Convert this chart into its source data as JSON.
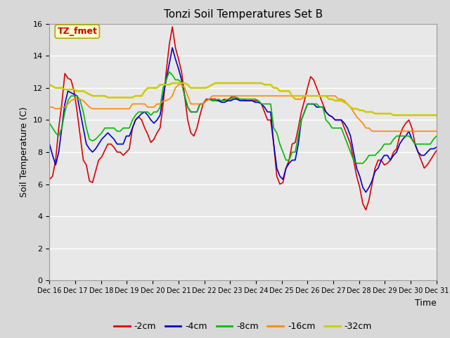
{
  "title": "Tonzi Soil Temperatures Set B",
  "xlabel": "Time",
  "ylabel": "Soil Temperature (C)",
  "annotation_text": "TZ_fmet",
  "annotation_bg": "#ffffcc",
  "annotation_border": "#aaaa00",
  "annotation_text_color": "#cc0000",
  "ylim": [
    0,
    16
  ],
  "yticks": [
    0,
    2,
    4,
    6,
    8,
    10,
    12,
    14,
    16
  ],
  "bg_color": "#d8d8d8",
  "plot_bg": "#e8e8e8",
  "legend_labels": [
    "-2cm",
    "-4cm",
    "-8cm",
    "-16cm",
    "-32cm"
  ],
  "line_colors": [
    "#dd0000",
    "#0000cc",
    "#00bb00",
    "#ff8800",
    "#cccc00"
  ],
  "line_widths": [
    1.2,
    1.2,
    1.2,
    1.2,
    1.8
  ],
  "x_tick_labels": [
    "Dec 16",
    "Dec 17",
    "Dec 18",
    "Dec 19",
    "Dec 20",
    "Dec 21",
    "Dec 22",
    "Dec 23",
    "Dec 24",
    "Dec 25",
    "Dec 26",
    "Dec 27",
    "Dec 28",
    "Dec 29",
    "Dec 30",
    "Dec 31"
  ],
  "series_2cm": [
    6.3,
    6.5,
    7.5,
    9.5,
    11.0,
    12.9,
    12.6,
    12.5,
    11.8,
    10.5,
    9.0,
    7.5,
    7.2,
    6.2,
    6.1,
    6.8,
    7.5,
    7.7,
    8.1,
    8.5,
    8.5,
    8.3,
    8.0,
    8.0,
    7.8,
    8.0,
    8.2,
    9.5,
    10.0,
    10.2,
    10.0,
    9.5,
    9.1,
    8.6,
    8.8,
    9.2,
    9.5,
    11.0,
    13.0,
    14.7,
    15.8,
    14.5,
    13.8,
    13.0,
    11.5,
    10.0,
    9.2,
    9.0,
    9.5,
    10.3,
    11.0,
    11.3,
    11.3,
    11.3,
    11.3,
    11.2,
    11.2,
    11.3,
    11.2,
    11.4,
    11.5,
    11.3,
    11.3,
    11.3,
    11.2,
    11.2,
    11.2,
    11.2,
    11.2,
    11.0,
    10.5,
    10.0,
    10.0,
    8.5,
    6.5,
    6.0,
    6.1,
    7.0,
    7.5,
    8.5,
    8.6,
    9.5,
    10.5,
    11.2,
    12.0,
    12.7,
    12.5,
    12.0,
    11.5,
    11.0,
    10.5,
    10.3,
    10.2,
    10.0,
    10.0,
    10.0,
    9.5,
    9.0,
    8.5,
    7.5,
    6.5,
    5.8,
    4.8,
    4.4,
    5.0,
    6.0,
    7.0,
    7.5,
    7.5,
    7.2,
    7.3,
    7.5,
    8.0,
    8.2,
    9.0,
    9.5,
    9.8,
    10.0,
    9.5,
    8.5,
    8.0,
    7.5,
    7.0,
    7.2,
    7.5,
    7.8,
    8.1
  ],
  "series_4cm": [
    8.5,
    7.8,
    7.2,
    8.0,
    9.5,
    11.0,
    11.8,
    11.7,
    11.6,
    11.5,
    10.5,
    9.5,
    8.5,
    8.2,
    8.0,
    8.2,
    8.5,
    8.8,
    9.0,
    9.2,
    9.0,
    8.8,
    8.5,
    8.5,
    8.5,
    9.0,
    9.0,
    9.5,
    10.0,
    10.2,
    10.4,
    10.5,
    10.3,
    10.0,
    9.8,
    10.0,
    10.3,
    11.5,
    12.5,
    13.5,
    14.5,
    13.8,
    13.2,
    12.5,
    11.5,
    10.8,
    10.5,
    10.5,
    10.5,
    11.0,
    11.0,
    11.2,
    11.3,
    11.2,
    11.2,
    11.2,
    11.1,
    11.1,
    11.2,
    11.2,
    11.3,
    11.3,
    11.2,
    11.2,
    11.2,
    11.2,
    11.2,
    11.1,
    11.1,
    11.0,
    10.8,
    10.5,
    10.5,
    8.5,
    7.0,
    6.5,
    6.3,
    7.0,
    7.3,
    7.5,
    7.5,
    8.5,
    10.0,
    10.5,
    11.0,
    11.0,
    11.0,
    10.8,
    10.8,
    10.8,
    10.5,
    10.3,
    10.2,
    10.0,
    10.0,
    10.0,
    9.8,
    9.5,
    9.0,
    8.0,
    7.0,
    6.5,
    5.8,
    5.5,
    5.8,
    6.2,
    6.8,
    7.0,
    7.5,
    7.8,
    7.8,
    7.5,
    7.8,
    8.0,
    8.5,
    8.8,
    9.0,
    9.3,
    8.8,
    8.5,
    8.0,
    7.8,
    7.8,
    8.0,
    8.2,
    8.2,
    8.3
  ],
  "series_8cm": [
    9.8,
    9.5,
    9.2,
    9.0,
    9.5,
    10.5,
    11.2,
    11.5,
    11.5,
    11.5,
    11.2,
    10.5,
    9.5,
    8.8,
    8.7,
    8.8,
    9.0,
    9.2,
    9.5,
    9.5,
    9.5,
    9.5,
    9.3,
    9.3,
    9.5,
    9.5,
    9.5,
    10.0,
    10.3,
    10.5,
    10.5,
    10.5,
    10.5,
    10.3,
    10.5,
    10.5,
    10.8,
    12.0,
    12.5,
    13.0,
    12.8,
    12.5,
    12.5,
    12.3,
    11.5,
    10.8,
    10.5,
    10.5,
    10.5,
    11.0,
    11.0,
    11.2,
    11.3,
    11.2,
    11.2,
    11.3,
    11.2,
    11.2,
    11.3,
    11.3,
    11.4,
    11.4,
    11.3,
    11.3,
    11.3,
    11.3,
    11.3,
    11.3,
    11.2,
    11.0,
    11.0,
    11.0,
    11.0,
    9.5,
    9.2,
    8.5,
    8.0,
    7.5,
    7.5,
    8.0,
    8.0,
    9.0,
    10.0,
    10.5,
    11.0,
    11.0,
    11.0,
    11.0,
    10.8,
    10.8,
    10.0,
    9.8,
    9.5,
    9.5,
    9.5,
    9.5,
    9.0,
    8.5,
    8.0,
    7.5,
    7.3,
    7.3,
    7.3,
    7.5,
    7.8,
    7.8,
    7.8,
    8.0,
    8.2,
    8.5,
    8.5,
    8.5,
    8.8,
    9.0,
    9.0,
    9.0,
    9.0,
    9.0,
    8.8,
    8.5,
    8.5,
    8.5,
    8.5,
    8.5,
    8.5,
    8.8,
    9.0
  ],
  "series_16cm": [
    10.8,
    10.8,
    10.7,
    10.7,
    10.8,
    10.8,
    11.0,
    11.2,
    11.3,
    11.3,
    11.3,
    11.2,
    11.0,
    10.8,
    10.7,
    10.7,
    10.7,
    10.7,
    10.7,
    10.7,
    10.7,
    10.7,
    10.7,
    10.7,
    10.7,
    10.7,
    10.7,
    11.0,
    11.0,
    11.0,
    11.0,
    11.0,
    10.8,
    10.8,
    10.8,
    11.0,
    11.0,
    11.2,
    11.2,
    11.3,
    11.5,
    12.0,
    12.2,
    12.2,
    12.0,
    11.5,
    11.0,
    11.0,
    11.0,
    11.0,
    11.0,
    11.2,
    11.3,
    11.5,
    11.5,
    11.5,
    11.5,
    11.5,
    11.5,
    11.5,
    11.5,
    11.5,
    11.5,
    11.5,
    11.5,
    11.5,
    11.5,
    11.5,
    11.5,
    11.5,
    11.5,
    11.5,
    11.5,
    11.5,
    11.5,
    11.5,
    11.5,
    11.5,
    11.5,
    11.5,
    11.3,
    11.3,
    11.3,
    11.5,
    11.5,
    11.5,
    11.5,
    11.5,
    11.5,
    11.5,
    11.5,
    11.5,
    11.5,
    11.5,
    11.3,
    11.3,
    11.2,
    11.0,
    10.8,
    10.5,
    10.2,
    10.0,
    9.8,
    9.5,
    9.5,
    9.3,
    9.3,
    9.3,
    9.3,
    9.3,
    9.3,
    9.3,
    9.3,
    9.3,
    9.3,
    9.3,
    9.3,
    9.3,
    9.3,
    9.3,
    9.3,
    9.3,
    9.3,
    9.3,
    9.3,
    9.3,
    9.3
  ],
  "series_32cm": [
    12.2,
    12.1,
    12.0,
    12.0,
    12.0,
    11.9,
    11.9,
    11.9,
    11.9,
    11.8,
    11.8,
    11.8,
    11.7,
    11.6,
    11.5,
    11.5,
    11.5,
    11.5,
    11.5,
    11.4,
    11.4,
    11.4,
    11.4,
    11.4,
    11.4,
    11.4,
    11.4,
    11.4,
    11.5,
    11.5,
    11.5,
    11.8,
    12.0,
    12.0,
    12.0,
    12.0,
    12.2,
    12.2,
    12.2,
    12.2,
    12.3,
    12.3,
    12.3,
    12.3,
    12.3,
    12.2,
    12.0,
    12.0,
    12.0,
    12.0,
    12.0,
    12.0,
    12.1,
    12.2,
    12.3,
    12.3,
    12.3,
    12.3,
    12.3,
    12.3,
    12.3,
    12.3,
    12.3,
    12.3,
    12.3,
    12.3,
    12.3,
    12.3,
    12.3,
    12.3,
    12.2,
    12.2,
    12.2,
    12.0,
    12.0,
    11.8,
    11.8,
    11.8,
    11.8,
    11.5,
    11.5,
    11.5,
    11.5,
    11.5,
    11.5,
    11.5,
    11.5,
    11.5,
    11.5,
    11.5,
    11.5,
    11.3,
    11.3,
    11.2,
    11.2,
    11.2,
    11.1,
    11.0,
    10.8,
    10.7,
    10.7,
    10.6,
    10.6,
    10.5,
    10.5,
    10.5,
    10.4,
    10.4,
    10.4,
    10.4,
    10.4,
    10.4,
    10.3,
    10.3,
    10.3,
    10.3,
    10.3,
    10.3,
    10.3,
    10.3,
    10.3,
    10.3,
    10.3,
    10.3,
    10.3,
    10.3,
    10.3
  ]
}
